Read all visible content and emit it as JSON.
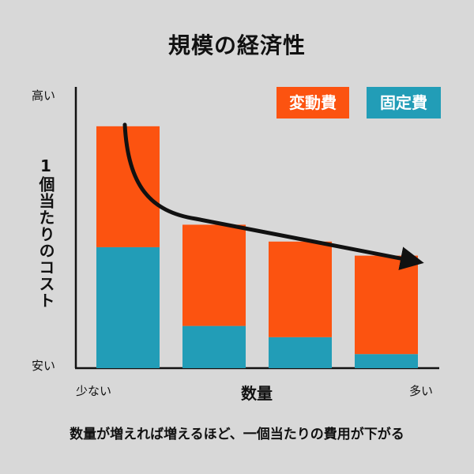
{
  "title": "規模の経済性",
  "legend": [
    {
      "label": "変動費",
      "color": "#fc5310"
    },
    {
      "label": "固定費",
      "color": "#229db7"
    }
  ],
  "y_axis": {
    "label": "1個当たりのコスト",
    "top": "高い",
    "bottom": "安い"
  },
  "x_axis": {
    "label": "数量",
    "left": "少ない",
    "right": "多い"
  },
  "caption": "数量が増えれば増えるほど、一個当たりの費用が下がる",
  "chart_data": {
    "type": "bar",
    "stacked": true,
    "categories": [
      "",
      "",
      "",
      ""
    ],
    "series": [
      {
        "name": "固定費",
        "values": [
          43,
          15,
          11,
          5
        ]
      },
      {
        "name": "変動費",
        "values": [
          43,
          36,
          34,
          35
        ]
      }
    ],
    "ylim": [
      0,
      100
    ],
    "trend_line": true,
    "xlabel": "数量",
    "ylabel": "1個当たりのコスト"
  }
}
